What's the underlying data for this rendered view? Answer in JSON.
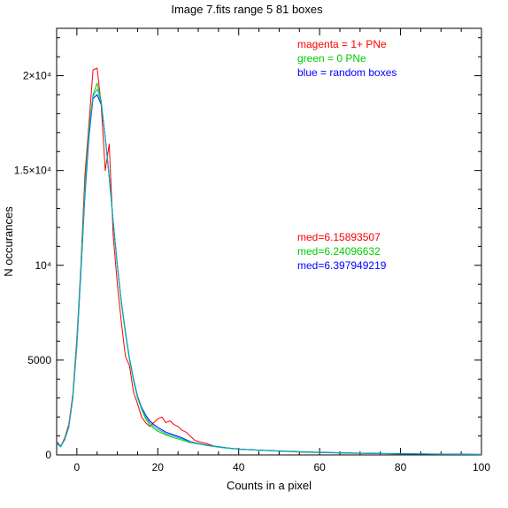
{
  "chart_data": {
    "type": "line",
    "title": "Image 7.fits   range 5    81 boxes",
    "xlabel": "Counts in a pixel",
    "ylabel": "N occurances",
    "xlim": [
      -5,
      100
    ],
    "ylim": [
      0,
      22500
    ],
    "x_ticks": [
      0,
      20,
      40,
      60,
      80,
      100
    ],
    "x_tick_labels": [
      "0",
      "20",
      "40",
      "60",
      "80",
      "100"
    ],
    "y_ticks": [
      0,
      5000,
      10000,
      15000,
      20000
    ],
    "y_tick_labels": [
      "0",
      "5000",
      "10⁴",
      "1.5×10⁴",
      "2×10⁴"
    ],
    "grid": false,
    "legend_position": "top-right",
    "legend": [
      {
        "text": "magenta = 1+ PNe",
        "color": "#ff0000"
      },
      {
        "text": "green = 0 PNe",
        "color": "#00cc00"
      },
      {
        "text": "blue = random boxes",
        "color": "#0000ff"
      }
    ],
    "annotations": [
      {
        "text": "med=6.15893507",
        "color": "#ff0000"
      },
      {
        "text": "med=6.24096632",
        "color": "#00cc00"
      },
      {
        "text": "med=6.397949219",
        "color": "#0000ff"
      }
    ],
    "series": [
      {
        "color": "#ff0000",
        "x": [
          -5,
          -4,
          -3,
          -2,
          -1,
          0,
          1,
          2,
          3,
          4,
          5,
          6,
          7,
          8,
          9,
          10,
          11,
          12,
          13,
          14,
          15,
          16,
          17,
          18,
          19,
          20,
          21,
          22,
          23,
          24,
          25,
          26,
          27,
          28,
          29,
          30,
          32,
          34,
          36,
          38,
          40,
          45,
          50,
          55,
          60,
          70,
          80,
          90,
          100
        ],
        "y": [
          700,
          450,
          900,
          1600,
          3200,
          6200,
          10000,
          14800,
          17500,
          20300,
          20400,
          18500,
          15000,
          16400,
          11500,
          9000,
          7000,
          5200,
          4700,
          3300,
          2700,
          2000,
          1700,
          1500,
          1700,
          1900,
          2000,
          1700,
          1800,
          1600,
          1500,
          1300,
          1200,
          1000,
          800,
          700,
          600,
          450,
          400,
          350,
          300,
          250,
          200,
          150,
          120,
          80,
          60,
          40,
          20
        ]
      },
      {
        "color": "#00cc00",
        "x": [
          -5,
          -4,
          -3,
          -2,
          -1,
          0,
          1,
          2,
          3,
          4,
          5,
          6,
          7,
          8,
          9,
          10,
          11,
          12,
          13,
          14,
          15,
          16,
          17,
          18,
          19,
          20,
          22,
          24,
          26,
          28,
          30,
          32,
          34,
          36,
          38,
          40,
          45,
          50,
          55,
          60,
          70,
          80,
          90,
          100
        ],
        "y": [
          600,
          420,
          850,
          1500,
          3100,
          6000,
          9900,
          14200,
          17200,
          19000,
          19600,
          18700,
          16700,
          14600,
          12200,
          9900,
          8000,
          6400,
          5000,
          3900,
          3000,
          2400,
          1900,
          1600,
          1400,
          1250,
          1050,
          900,
          780,
          650,
          580,
          500,
          440,
          380,
          340,
          300,
          240,
          200,
          160,
          130,
          90,
          60,
          40,
          25
        ]
      },
      {
        "color": "#0000ff",
        "x": [
          -5,
          -4,
          -3,
          -2,
          -1,
          0,
          1,
          2,
          3,
          4,
          5,
          6,
          7,
          8,
          9,
          10,
          11,
          12,
          13,
          14,
          15,
          16,
          17,
          18,
          19,
          20,
          22,
          24,
          26,
          28,
          30,
          32,
          34,
          36,
          38,
          40,
          45,
          50,
          55,
          60,
          70,
          80,
          90,
          100
        ],
        "y": [
          650,
          450,
          800,
          1450,
          3000,
          5800,
          9600,
          13700,
          16800,
          18800,
          19000,
          18500,
          16800,
          14700,
          12300,
          10000,
          8100,
          6500,
          5100,
          4000,
          3100,
          2500,
          2100,
          1800,
          1600,
          1450,
          1200,
          1050,
          900,
          700,
          600,
          520,
          460,
          400,
          350,
          310,
          250,
          210,
          170,
          140,
          95,
          65,
          45,
          30
        ]
      },
      {
        "color": "#00bbbb",
        "x": [
          -5,
          -4,
          -3,
          -2,
          -1,
          0,
          1,
          2,
          3,
          4,
          5,
          6,
          7,
          8,
          9,
          10,
          11,
          12,
          13,
          14,
          15,
          16,
          17,
          18,
          19,
          20,
          22,
          24,
          26,
          28,
          30,
          32,
          34,
          36,
          38,
          40,
          45,
          50,
          55,
          60,
          70,
          80,
          90,
          100
        ],
        "y": [
          620,
          430,
          830,
          1480,
          3050,
          5900,
          9750,
          13900,
          17000,
          18900,
          19300,
          18600,
          16750,
          14650,
          12250,
          9950,
          8050,
          6450,
          5050,
          3950,
          3050,
          2450,
          2000,
          1700,
          1500,
          1350,
          1120,
          980,
          840,
          680,
          590,
          510,
          450,
          390,
          345,
          305,
          245,
          205,
          165,
          135,
          92,
          62,
          42,
          27
        ]
      }
    ]
  }
}
